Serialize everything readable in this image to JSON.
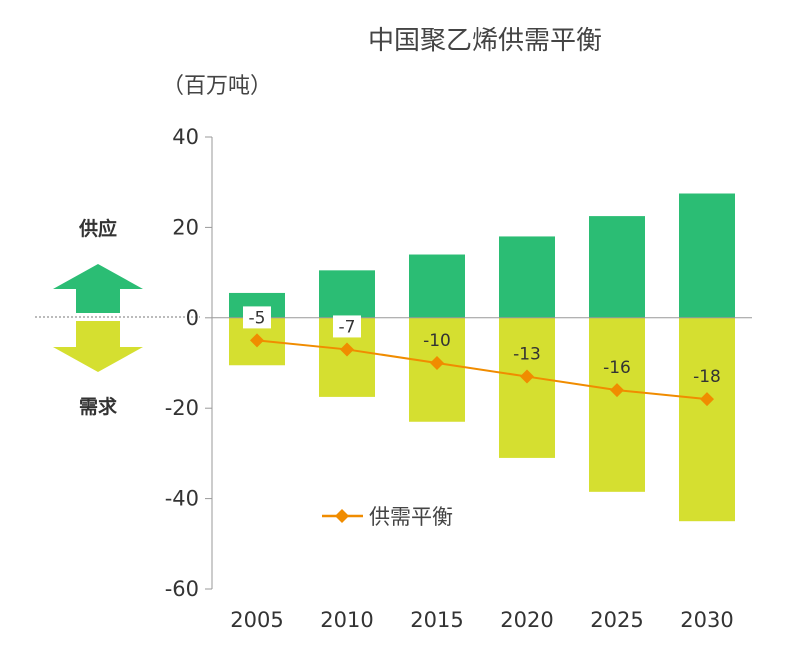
{
  "chart_data": {
    "type": "bar+line",
    "title": "中国聚乙烯供需平衡",
    "unit_label": "（百万吨）",
    "categories": [
      "2005",
      "2010",
      "2015",
      "2020",
      "2025",
      "2030"
    ],
    "series": [
      {
        "name": "供应",
        "kind": "bar",
        "values": [
          5.5,
          10.5,
          14,
          18,
          22.5,
          27.5
        ]
      },
      {
        "name": "需求",
        "kind": "bar",
        "values": [
          -10.5,
          -17.5,
          -23,
          -31,
          -38.5,
          -45
        ]
      },
      {
        "name": "供需平衡",
        "kind": "line",
        "values": [
          -5,
          -7,
          -10,
          -13,
          -16,
          -18
        ]
      }
    ],
    "balance_labels": [
      "-5",
      "-7",
      "-10",
      "-13",
      "-16",
      "-18"
    ],
    "ylim": [
      -60,
      40
    ],
    "yticks": [
      40,
      20,
      0,
      -20,
      -40,
      -60
    ],
    "side_labels": {
      "supply": "供应",
      "demand": "需求"
    },
    "legend": {
      "label": "供需平衡",
      "position": "bottom-center"
    },
    "colors": {
      "supply": "#2bbd74",
      "demand": "#d5df30",
      "balance": "#f08c00",
      "axis": "#999999"
    }
  }
}
